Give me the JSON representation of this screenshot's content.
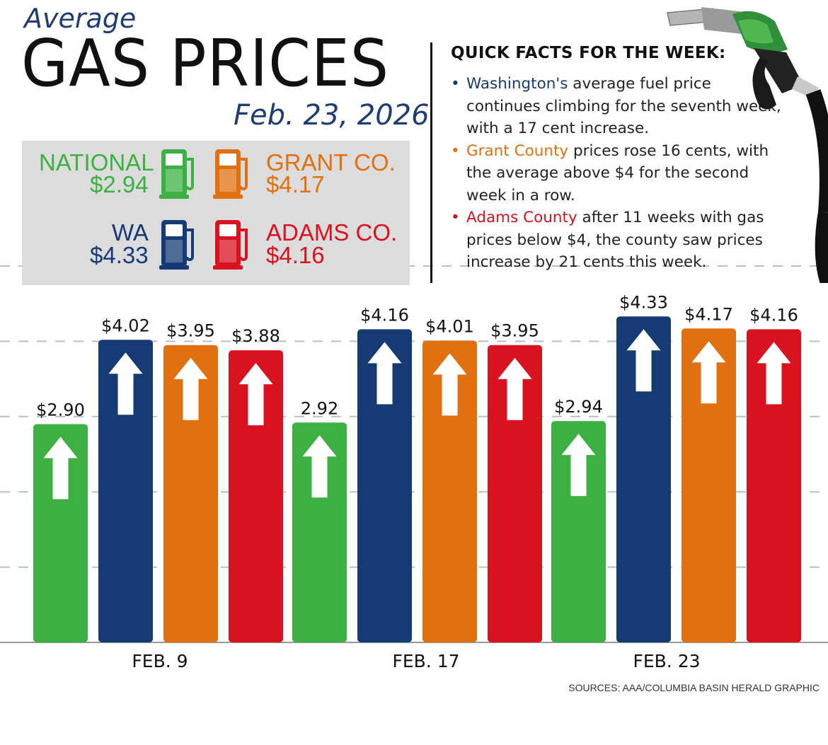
{
  "header": {
    "kicker": "Average",
    "title": "GAS PRICES",
    "date": "Feb. 23, 2026"
  },
  "legend": [
    {
      "name": "NATIONAL",
      "price": "$2.94",
      "color": "#3db043",
      "icon": "gas-pump-icon"
    },
    {
      "name": "GRANT CO.",
      "price": "$4.17",
      "color": "#e07010",
      "icon": "gas-pump-icon"
    },
    {
      "name": "WA",
      "price": "$4.33",
      "color": "#153a74",
      "icon": "gas-pump-icon"
    },
    {
      "name": "ADAMS CO.",
      "price": "$4.16",
      "color": "#d9121f",
      "icon": "gas-pump-icon"
    }
  ],
  "facts": {
    "title": "QUICK FACTS FOR THE WEEK:",
    "items": [
      {
        "highlight": "Washington's",
        "rest": " average fuel price continues climbing for the seventh week, with a 17 cent increase.",
        "color": "#153a74"
      },
      {
        "highlight": "Grant County",
        "rest": " prices rose 16 cents, with the average above $4 for the second week in a row.",
        "color": "#e07010"
      },
      {
        "highlight": "Adams County",
        "rest": " after 11 weeks with gas prices below $4, the county saw prices increase by 21 cents this week.",
        "color": "#d9121f"
      }
    ]
  },
  "decor": {
    "nozzle_icon": "fuel-nozzle-icon",
    "arrow_icon": "up-arrow-icon"
  },
  "source": "SOURCES: AAA/COLUMBIA BASIN HERALD GRAPHIC",
  "chart_data": {
    "type": "bar",
    "categories": [
      "FEB. 9",
      "FEB. 17",
      "FEB. 23"
    ],
    "series": [
      {
        "name": "NATIONAL",
        "color": "#3db043",
        "values": [
          2.9,
          2.92,
          2.94
        ],
        "labels": [
          "$2.90",
          "2.92",
          "$2.94"
        ]
      },
      {
        "name": "WA",
        "color": "#153a74",
        "values": [
          4.02,
          4.16,
          4.33
        ],
        "labels": [
          "$4.02",
          "$4.16",
          "$4.33"
        ]
      },
      {
        "name": "GRANT CO.",
        "color": "#e07010",
        "values": [
          3.95,
          4.01,
          4.17
        ],
        "labels": [
          "$3.95",
          "$4.01",
          "$4.17"
        ]
      },
      {
        "name": "ADAMS CO.",
        "color": "#d9121f",
        "values": [
          3.88,
          3.95,
          4.16
        ],
        "labels": [
          "$3.88",
          "$3.95",
          "$4.16"
        ]
      }
    ],
    "ylim": [
      0,
      5
    ],
    "grid": true,
    "xlabel": "",
    "ylabel": ""
  }
}
